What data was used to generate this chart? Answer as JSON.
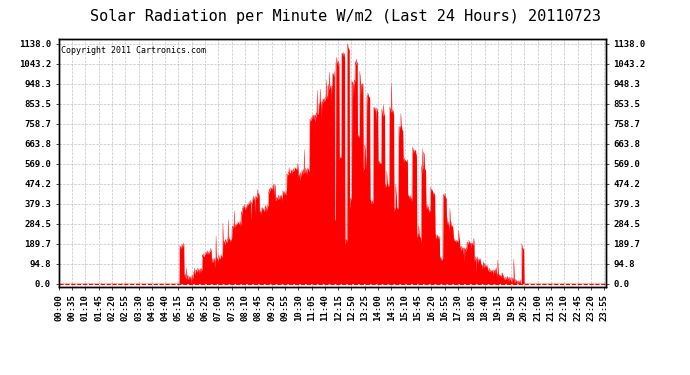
{
  "title": "Solar Radiation per Minute W/m2 (Last 24 Hours) 20110723",
  "copyright": "Copyright 2011 Cartronics.com",
  "fill_color": "#FF0000",
  "line_color": "#FF0000",
  "background_color": "#FFFFFF",
  "plot_bg_color": "#FFFFFF",
  "grid_color": "#AAAAAA",
  "dashed_line_color": "#FF0000",
  "yticks": [
    0.0,
    94.8,
    189.7,
    284.5,
    379.3,
    474.2,
    569.0,
    663.8,
    758.7,
    853.5,
    948.3,
    1043.2,
    1138.0
  ],
  "ymax": 1138.0,
  "ymin": 0,
  "num_points": 1440,
  "title_fontsize": 11,
  "tick_fontsize": 6.5,
  "copyright_fontsize": 6
}
